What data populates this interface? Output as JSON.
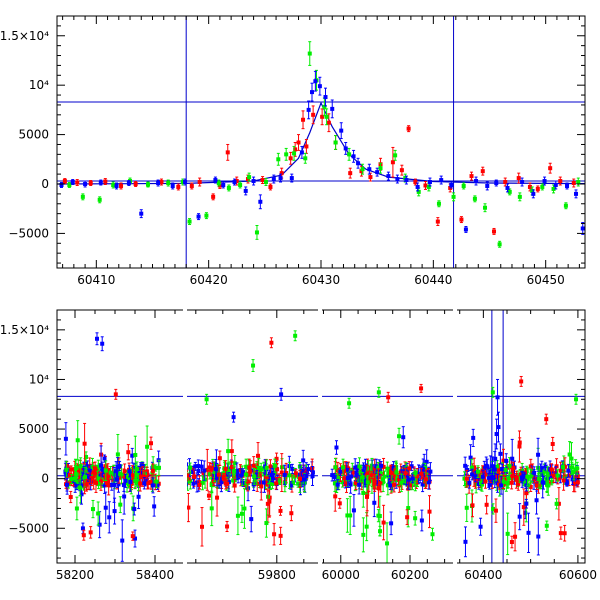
{
  "chart_data": [
    {
      "type": "scatter",
      "title": "",
      "xlabel": "",
      "ylabel": "",
      "xlim": [
        60406.5,
        60453.5
      ],
      "ylim": [
        -8500,
        17000
      ],
      "x_ticks": [
        60410,
        60420,
        60430,
        60440,
        60450
      ],
      "x_tick_labels": [
        "60410",
        "60420",
        "60430",
        "60440",
        "60450"
      ],
      "y_ticks": [
        -5000,
        0,
        5000,
        10000,
        15000
      ],
      "y_tick_labels": [
        "−5000",
        "0",
        "5000",
        "10⁴",
        "1.5×10⁴"
      ],
      "colors": {
        "red": "#ff0000",
        "green": "#00ee00",
        "blue": "#0000ff",
        "line": "#0000cc"
      },
      "horizontal_lines": [
        8300,
        300
      ],
      "vertical_lines": [
        60418.0,
        60441.8
      ],
      "model_curve": {
        "x": [
          60406.5,
          60418,
          60424,
          60426.5,
          60428,
          60429,
          60430,
          60431,
          60432.5,
          60434,
          60436,
          60440,
          60445,
          60453.5
        ],
        "y": [
          0,
          60,
          300,
          900,
          2600,
          5200,
          8200,
          5800,
          3000,
          1500,
          700,
          250,
          100,
          40
        ]
      },
      "series": [
        {
          "name": "",
          "color": "red",
          "points": [
            [
              60407.2,
              300,
              250
            ],
            [
              60408.3,
              150,
              300
            ],
            [
              60409.5,
              100,
              250
            ],
            [
              60410.8,
              250,
              300
            ],
            [
              60412.2,
              -200,
              300
            ],
            [
              60413.5,
              0,
              250
            ],
            [
              60415.8,
              200,
              300
            ],
            [
              60417.3,
              -300,
              300
            ],
            [
              60418.5,
              -200,
              300
            ],
            [
              60419.2,
              200,
              400
            ],
            [
              60420.4,
              -1300,
              300
            ],
            [
              60421.0,
              -150,
              300
            ],
            [
              60421.7,
              3200,
              800
            ],
            [
              60422.5,
              300,
              400
            ],
            [
              60423.5,
              500,
              400
            ],
            [
              60424.8,
              400,
              350
            ],
            [
              60425.5,
              -300,
              300
            ],
            [
              60426.5,
              1100,
              500
            ],
            [
              60427.3,
              2600,
              600
            ],
            [
              60427.7,
              3500,
              700
            ],
            [
              60428.0,
              4200,
              800
            ],
            [
              60428.4,
              6500,
              900
            ],
            [
              60428.7,
              3800,
              700
            ],
            [
              60429.3,
              7000,
              900
            ],
            [
              60430.1,
              6800,
              800
            ],
            [
              60430.7,
              6200,
              900
            ],
            [
              60431.3,
              4200,
              700
            ],
            [
              60432.6,
              1100,
              500
            ],
            [
              60433.6,
              1300,
              500
            ],
            [
              60434.4,
              700,
              400
            ],
            [
              60435.3,
              2000,
              600
            ],
            [
              60436.4,
              2200,
              1500
            ],
            [
              60437.2,
              1400,
              500
            ],
            [
              60437.8,
              5600,
              300
            ],
            [
              60438.4,
              200,
              300
            ],
            [
              60439.3,
              -150,
              400
            ],
            [
              60440.4,
              -3800,
              400
            ],
            [
              60441.5,
              -400,
              400
            ],
            [
              60442.5,
              -3600,
              300
            ],
            [
              60443.4,
              800,
              400
            ],
            [
              60444.4,
              1300,
              400
            ],
            [
              60445.4,
              -4800,
              300
            ],
            [
              60446.4,
              200,
              400
            ],
            [
              60447.6,
              600,
              500
            ],
            [
              60448.6,
              -300,
              400
            ],
            [
              60449.3,
              -500,
              300
            ],
            [
              60450.4,
              1600,
              500
            ],
            [
              60451.3,
              300,
              400
            ],
            [
              60452.5,
              100,
              400
            ]
          ]
        },
        {
          "name": "",
          "color": "green",
          "points": [
            [
              60407.6,
              -100,
              250
            ],
            [
              60408.8,
              -1300,
              300
            ],
            [
              60410.3,
              -1600,
              300
            ],
            [
              60411.5,
              -100,
              300
            ],
            [
              60413.0,
              300,
              300
            ],
            [
              60414.6,
              -50,
              250
            ],
            [
              60416.4,
              100,
              300
            ],
            [
              60417.7,
              200,
              300
            ],
            [
              60418.3,
              -3800,
              300
            ],
            [
              60419.8,
              -3200,
              300
            ],
            [
              60420.9,
              100,
              300
            ],
            [
              60421.8,
              -400,
              300
            ],
            [
              60422.8,
              -100,
              300
            ],
            [
              60423.6,
              700,
              400
            ],
            [
              60424.3,
              -4900,
              700
            ],
            [
              60425.1,
              200,
              350
            ],
            [
              60426.2,
              2500,
              600
            ],
            [
              60426.9,
              3000,
              600
            ],
            [
              60427.6,
              3100,
              700
            ],
            [
              60428.6,
              2600,
              500
            ],
            [
              60429.0,
              13200,
              1200
            ],
            [
              60429.6,
              10500,
              1000
            ],
            [
              60430.3,
              7800,
              900
            ],
            [
              60430.5,
              6800,
              800
            ],
            [
              60431.3,
              4200,
              700
            ],
            [
              60432.5,
              3000,
              600
            ],
            [
              60433.7,
              1500,
              500
            ],
            [
              60435.3,
              1600,
              500
            ],
            [
              60436.6,
              2900,
              500
            ],
            [
              60437.5,
              600,
              400
            ],
            [
              60438.7,
              -800,
              400
            ],
            [
              60439.6,
              -300,
              400
            ],
            [
              60440.5,
              -2000,
              300
            ],
            [
              60441.8,
              -1300,
              400
            ],
            [
              60442.7,
              -200,
              300
            ],
            [
              60443.7,
              -1500,
              300
            ],
            [
              60444.6,
              -2400,
              400
            ],
            [
              60445.9,
              -6100,
              300
            ],
            [
              60446.8,
              -800,
              300
            ],
            [
              60447.7,
              -1300,
              400
            ],
            [
              60448.8,
              -700,
              400
            ],
            [
              60449.7,
              -300,
              300
            ],
            [
              60450.7,
              -500,
              400
            ],
            [
              60451.8,
              -2200,
              300
            ],
            [
              60452.9,
              200,
              400
            ]
          ]
        },
        {
          "name": "",
          "color": "blue",
          "points": [
            [
              60406.9,
              -100,
              250
            ],
            [
              60407.9,
              200,
              250
            ],
            [
              60409.0,
              0,
              300
            ],
            [
              60410.4,
              150,
              250
            ],
            [
              60411.8,
              -200,
              300
            ],
            [
              60412.9,
              100,
              250
            ],
            [
              60414.0,
              -3000,
              400
            ],
            [
              60415.5,
              100,
              300
            ],
            [
              60416.8,
              -200,
              300
            ],
            [
              60417.9,
              200,
              300
            ],
            [
              60419.1,
              -3300,
              300
            ],
            [
              60420.6,
              400,
              300
            ],
            [
              60421.3,
              -100,
              300
            ],
            [
              60422.3,
              200,
              300
            ],
            [
              60423.3,
              -700,
              400
            ],
            [
              60424.0,
              300,
              400
            ],
            [
              60424.6,
              -1800,
              700
            ],
            [
              60425.8,
              500,
              400
            ],
            [
              60426.4,
              600,
              400
            ],
            [
              60427.4,
              600,
              400
            ],
            [
              60428.3,
              3200,
              600
            ],
            [
              60428.9,
              7500,
              900
            ],
            [
              60429.2,
              9300,
              900
            ],
            [
              60429.5,
              10400,
              1000
            ],
            [
              60429.9,
              9900,
              900
            ],
            [
              60430.4,
              8800,
              900
            ],
            [
              60431.0,
              7600,
              900
            ],
            [
              60431.8,
              5400,
              800
            ],
            [
              60432.2,
              3600,
              600
            ],
            [
              60432.9,
              2800,
              600
            ],
            [
              60433.3,
              2100,
              500
            ],
            [
              60434.3,
              1500,
              500
            ],
            [
              60435.0,
              1200,
              400
            ],
            [
              60436.0,
              800,
              400
            ],
            [
              60436.8,
              500,
              400
            ],
            [
              60437.6,
              400,
              400
            ],
            [
              60438.6,
              -300,
              400
            ],
            [
              60439.7,
              200,
              400
            ],
            [
              60440.7,
              400,
              400
            ],
            [
              60441.6,
              -100,
              300
            ],
            [
              60442.9,
              -4600,
              300
            ],
            [
              60443.8,
              300,
              400
            ],
            [
              60444.8,
              -200,
              400
            ],
            [
              60445.6,
              100,
              300
            ],
            [
              60446.6,
              -400,
              400
            ],
            [
              60447.9,
              200,
              400
            ],
            [
              60448.9,
              -1000,
              400
            ],
            [
              60449.9,
              300,
              400
            ],
            [
              60450.9,
              -100,
              400
            ],
            [
              60451.9,
              -200,
              300
            ],
            [
              60452.7,
              -1000,
              400
            ],
            [
              60453.3,
              -4500,
              600
            ]
          ]
        }
      ]
    },
    {
      "type": "scatter",
      "title": "",
      "xlabel": "",
      "ylabel": "",
      "x_range_note": "broken x-axis with four segments",
      "ylim": [
        -8500,
        17000
      ],
      "y_ticks": [
        -5000,
        0,
        5000,
        10000,
        15000
      ],
      "y_tick_labels": [
        "−5000",
        "0",
        "5000",
        "10⁴",
        "1.5×10⁴"
      ],
      "horizontal_lines": [
        8300,
        300
      ],
      "vertical_lines": [
        60418.0,
        60441.8
      ],
      "segments": [
        {
          "xlim": [
            58155,
            58475
          ],
          "ticks": [
            58200,
            58400
          ],
          "tick_labels": [
            "58200",
            "58400"
          ],
          "data_range": [
            58175,
            58410
          ]
        },
        {
          "xlim": [
            59630,
            59880
          ],
          "ticks": [
            59800
          ],
          "tick_labels": [
            "59800"
          ],
          "data_range": [
            59630,
            59870
          ]
        },
        {
          "xlim": [
            59940,
            60330
          ],
          "ticks": [
            60000,
            60200
          ],
          "tick_labels": [
            "60000",
            "60200"
          ],
          "data_range": [
            59975,
            60260
          ]
        },
        {
          "xlim": [
            60340,
            60615
          ],
          "ticks": [
            60400,
            60600
          ],
          "tick_labels": [
            "60400",
            "60600"
          ],
          "data_range": [
            60360,
            60600
          ]
        }
      ],
      "outliers": [
        {
          "color": "blue",
          "points": [
            [
              58255,
              14100,
              600
            ],
            [
              58268,
              13600,
              700
            ],
            [
              59808,
              8500,
              600
            ],
            [
              59720,
              6200,
              500
            ]
          ]
        },
        {
          "color": "red",
          "points": [
            [
              58302,
              8500,
              500
            ],
            [
              59790,
              13700,
              500
            ],
            [
              59880,
              13600,
              400
            ],
            [
              60137,
              8200,
              500
            ],
            [
              60232,
              9100,
              400
            ],
            [
              60480,
              9800,
              500
            ],
            [
              60533,
              6000,
              500
            ],
            [
              58222,
              -5700,
              500
            ]
          ]
        },
        {
          "color": "green",
          "points": [
            [
              59670,
              8000,
              500
            ],
            [
              59756,
              11400,
              600
            ],
            [
              59834,
              14400,
              500
            ],
            [
              60024,
              7600,
              500
            ],
            [
              60110,
              8700,
              500
            ],
            [
              60420,
              8700,
              500
            ],
            [
              60596,
              8000,
              500
            ],
            [
              60265,
              -5600,
              600
            ]
          ]
        }
      ]
    }
  ]
}
